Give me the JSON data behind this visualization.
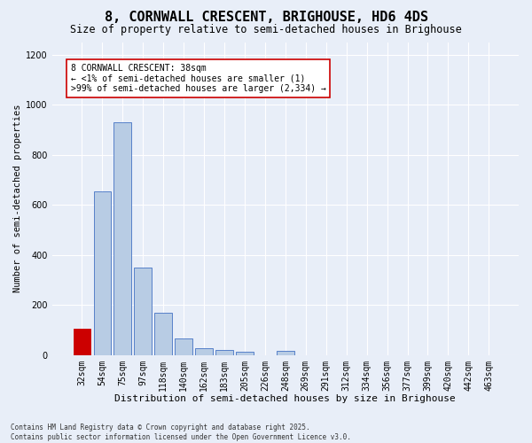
{
  "title": "8, CORNWALL CRESCENT, BRIGHOUSE, HD6 4DS",
  "subtitle": "Size of property relative to semi-detached houses in Brighouse",
  "xlabel": "Distribution of semi-detached houses by size in Brighouse",
  "ylabel": "Number of semi-detached properties",
  "categories": [
    "32sqm",
    "54sqm",
    "75sqm",
    "97sqm",
    "118sqm",
    "140sqm",
    "162sqm",
    "183sqm",
    "205sqm",
    "226sqm",
    "248sqm",
    "269sqm",
    "291sqm",
    "312sqm",
    "334sqm",
    "356sqm",
    "377sqm",
    "399sqm",
    "420sqm",
    "442sqm",
    "463sqm"
  ],
  "values": [
    105,
    655,
    930,
    350,
    170,
    68,
    28,
    20,
    13,
    0,
    15,
    0,
    0,
    0,
    0,
    0,
    0,
    0,
    0,
    0,
    0
  ],
  "bar_color": "#b8cce4",
  "bar_edgecolor": "#4472c4",
  "highlight_bar_index": 0,
  "highlight_color": "#cc0000",
  "annotation_text": "8 CORNWALL CRESCENT: 38sqm\n← <1% of semi-detached houses are smaller (1)\n>99% of semi-detached houses are larger (2,334) →",
  "annotation_box_color": "#ffffff",
  "annotation_box_edgecolor": "#cc0000",
  "ylim": [
    0,
    1250
  ],
  "yticks": [
    0,
    200,
    400,
    600,
    800,
    1000,
    1200
  ],
  "bg_color": "#e8eef8",
  "grid_color": "#ffffff",
  "footnote": "Contains HM Land Registry data © Crown copyright and database right 2025.\nContains public sector information licensed under the Open Government Licence v3.0.",
  "title_fontsize": 11,
  "subtitle_fontsize": 8.5,
  "xlabel_fontsize": 8,
  "ylabel_fontsize": 7.5,
  "tick_fontsize": 7,
  "annotation_fontsize": 7,
  "footnote_fontsize": 5.5
}
